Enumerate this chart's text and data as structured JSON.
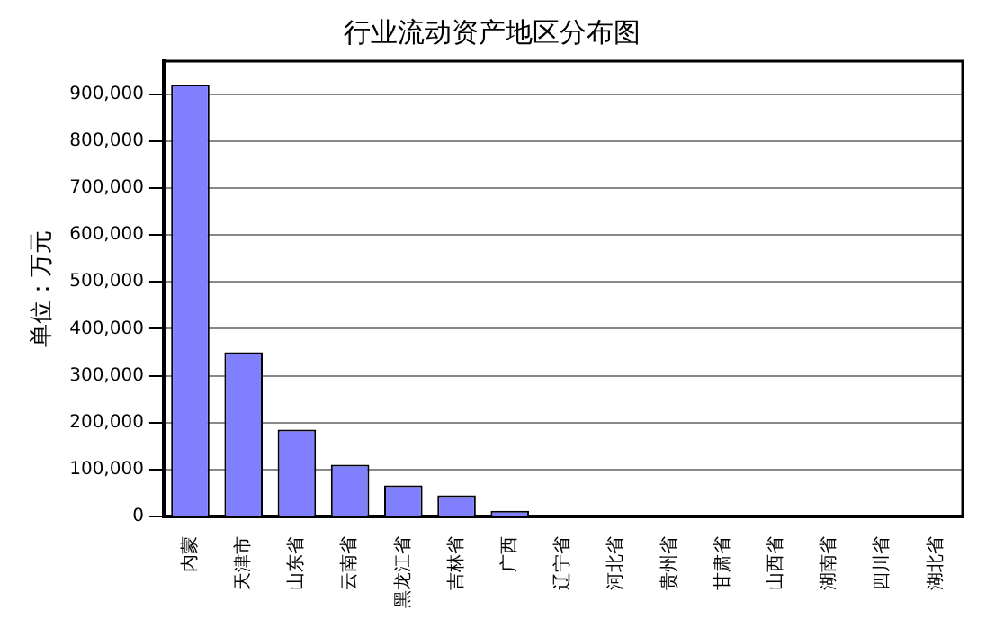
{
  "chart_data": {
    "type": "bar",
    "title": "行业流动资产地区分布图",
    "ylabel": "单位：万元",
    "categories": [
      "内蒙",
      "天津市",
      "山东省",
      "云南省",
      "黑龙江省",
      "吉林省",
      "广西",
      "辽宁省",
      "河北省",
      "贵州省",
      "甘肃省",
      "山西省",
      "湖南省",
      "四川省",
      "湖北省"
    ],
    "values": [
      920000,
      350000,
      185000,
      110000,
      66000,
      45000,
      12000,
      0,
      0,
      0,
      0,
      0,
      0,
      0,
      0
    ],
    "color": "#8080ff",
    "ylim": [
      0,
      970000
    ],
    "yticks": [
      0,
      {
        "value": 100000,
        "label": "100,000"
      },
      {
        "value": 200000,
        "label": "200,000"
      },
      {
        "value": 300000,
        "label": "300,000"
      },
      {
        "value": 400000,
        "label": "400,000"
      },
      {
        "value": 500000,
        "label": "500,000"
      },
      {
        "value": 600000,
        "label": "600,000"
      },
      {
        "value": 700000,
        "label": "700,000"
      },
      {
        "value": 800000,
        "label": "800,000"
      },
      {
        "value": 900000,
        "label": "900,000"
      }
    ],
    "grid": "y"
  }
}
